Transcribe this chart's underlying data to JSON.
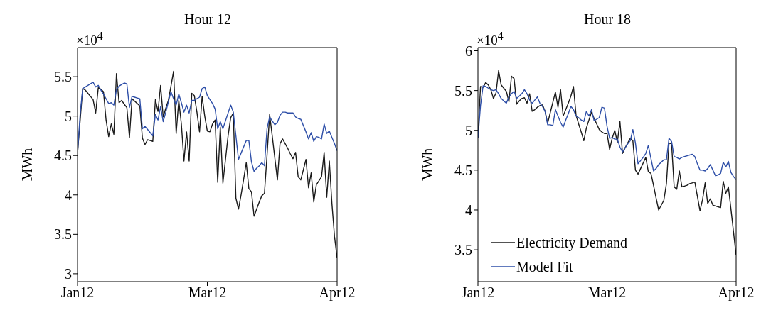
{
  "chart_data": [
    {
      "type": "line",
      "title": "Hour 12",
      "ylabel": "MWh",
      "annotations": [
        "×10$^{4}$"
      ],
      "ylim": [
        2.9,
        5.87
      ],
      "yticks": [
        3,
        3.5,
        4,
        4.5,
        5,
        5.5
      ],
      "grid": false,
      "legend": false,
      "categories": [
        "Jan12",
        null,
        null,
        null,
        null,
        null,
        null,
        null,
        null,
        null,
        null,
        null,
        null,
        null,
        null,
        null,
        null,
        null,
        null,
        null,
        null,
        null,
        null,
        null,
        null,
        null,
        null,
        null,
        null,
        null,
        null,
        null,
        null,
        null,
        null,
        null,
        null,
        null,
        null,
        null,
        null,
        null,
        null,
        null,
        null,
        null,
        null,
        null,
        null,
        null,
        "Mar12",
        null,
        null,
        null,
        null,
        null,
        null,
        null,
        null,
        null,
        null,
        null,
        null,
        null,
        null,
        null,
        null,
        null,
        null,
        null,
        null,
        null,
        null,
        null,
        null,
        null,
        null,
        null,
        null,
        null,
        null,
        null,
        null,
        null,
        null,
        null,
        null,
        null,
        null,
        null,
        null,
        null,
        null,
        null,
        null,
        null,
        null,
        null,
        null,
        null,
        "Apr12"
      ],
      "series": [
        {
          "color": "#1a1a1a",
          "values": [
            4.53,
            4.94,
            5.35,
            5.33,
            5.29,
            5.25,
            5.21,
            5.04,
            5.36,
            5.34,
            5.31,
            4.95,
            4.74,
            4.9,
            4.77,
            5.54,
            5.17,
            5.2,
            5.15,
            5.11,
            4.73,
            5.22,
            5.19,
            5.16,
            5.13,
            4.72,
            4.64,
            4.7,
            4.69,
            4.68,
            5.21,
            5.06,
            5.39,
            4.99,
            5.1,
            5.2,
            5.38,
            5.57,
            4.78,
            5.2,
            4.9,
            4.43,
            4.8,
            4.43,
            5.29,
            5.26,
            5.05,
            4.8,
            5.25,
            5.0,
            4.81,
            4.8,
            4.9,
            4.95,
            4.16,
            4.86,
            4.15,
            4.45,
            4.75,
            4.98,
            5.04,
            3.96,
            3.82,
            4.0,
            4.2,
            4.41,
            4.08,
            4.04,
            3.73,
            3.82,
            3.91,
            3.99,
            4.02,
            4.5,
            5.02,
            4.75,
            4.47,
            4.19,
            4.65,
            4.71,
            4.65,
            4.59,
            4.52,
            4.46,
            4.54,
            4.23,
            4.19,
            4.32,
            4.45,
            4.09,
            4.28,
            3.91,
            4.13,
            4.18,
            4.23,
            4.54,
            3.97,
            4.43,
            3.89,
            3.47,
            3.2
          ]
        },
        {
          "color": "#2e4fa8",
          "values": [
            4.53,
            5.02,
            5.35,
            5.37,
            5.39,
            5.41,
            5.43,
            5.37,
            5.39,
            5.33,
            5.28,
            5.22,
            5.16,
            5.17,
            5.14,
            5.34,
            5.38,
            5.4,
            5.42,
            5.41,
            5.11,
            5.25,
            5.24,
            5.23,
            5.22,
            4.84,
            4.87,
            4.83,
            4.79,
            4.75,
            5.02,
            4.95,
            5.12,
            4.93,
            5.05,
            5.18,
            5.31,
            5.22,
            5.14,
            5.28,
            5.17,
            5.05,
            5.14,
            5.04,
            5.2,
            5.2,
            5.22,
            5.24,
            5.35,
            5.37,
            5.26,
            5.21,
            5.16,
            5.09,
            4.84,
            4.93,
            4.84,
            4.94,
            5.04,
            5.14,
            5.05,
            4.75,
            4.45,
            4.53,
            4.61,
            4.69,
            4.69,
            4.42,
            4.3,
            4.34,
            4.37,
            4.41,
            4.37,
            4.84,
            4.99,
            4.94,
            4.89,
            4.92,
            5.01,
            5.05,
            5.05,
            5.04,
            5.04,
            5.04,
            4.99,
            4.97,
            4.96,
            4.88,
            4.8,
            4.71,
            4.79,
            4.68,
            4.74,
            4.73,
            4.71,
            4.9,
            4.78,
            4.81,
            4.73,
            4.65,
            4.56
          ]
        }
      ]
    },
    {
      "type": "line",
      "title": "Hour 18",
      "ylabel": "MWh",
      "annotations": [
        "×10$^{4}$"
      ],
      "ylim": [
        3.1,
        6.04
      ],
      "yticks": [
        3.5,
        4,
        4.5,
        5,
        5.5,
        6
      ],
      "grid": false,
      "legend": "bottom left",
      "categories": [
        "Jan12",
        null,
        null,
        null,
        null,
        null,
        null,
        null,
        null,
        null,
        null,
        null,
        null,
        null,
        null,
        null,
        null,
        null,
        null,
        null,
        null,
        null,
        null,
        null,
        null,
        null,
        null,
        null,
        null,
        null,
        null,
        null,
        null,
        null,
        null,
        null,
        null,
        null,
        null,
        null,
        null,
        null,
        null,
        null,
        null,
        null,
        null,
        null,
        null,
        null,
        "Mar12",
        null,
        null,
        null,
        null,
        null,
        null,
        null,
        null,
        null,
        null,
        null,
        null,
        null,
        null,
        null,
        null,
        null,
        null,
        null,
        null,
        null,
        null,
        null,
        null,
        null,
        null,
        null,
        null,
        null,
        null,
        null,
        null,
        null,
        null,
        null,
        null,
        null,
        null,
        null,
        null,
        null,
        null,
        null,
        null,
        null,
        null,
        null,
        null,
        null,
        "Apr12"
      ],
      "series": [
        {
          "name": "Electricity Demand",
          "color": "#1a1a1a",
          "values": [
            4.9,
            5.55,
            5.54,
            5.6,
            5.57,
            5.51,
            5.4,
            5.47,
            5.75,
            5.57,
            5.53,
            5.49,
            5.36,
            5.68,
            5.65,
            5.33,
            5.37,
            5.4,
            5.41,
            5.34,
            5.46,
            5.24,
            5.26,
            5.29,
            5.31,
            5.32,
            5.24,
            5.09,
            5.22,
            5.35,
            5.48,
            5.29,
            5.51,
            5.18,
            5.26,
            5.34,
            5.43,
            5.55,
            5.19,
            5.08,
            4.98,
            4.87,
            5.03,
            5.13,
            5.23,
            5.15,
            5.08,
            5.01,
            4.98,
            4.96,
            4.96,
            4.76,
            4.9,
            5.0,
            4.85,
            5.11,
            4.71,
            4.78,
            4.84,
            4.9,
            4.87,
            4.5,
            4.45,
            4.52,
            4.59,
            4.66,
            4.48,
            4.46,
            4.31,
            4.15,
            4.0,
            4.06,
            4.12,
            4.33,
            4.84,
            4.83,
            4.29,
            4.26,
            4.49,
            4.29,
            4.3,
            4.31,
            4.33,
            4.34,
            4.35,
            4.17,
            3.99,
            4.13,
            4.34,
            4.08,
            4.14,
            4.06,
            4.05,
            4.04,
            4.03,
            4.36,
            4.21,
            4.29,
            4.01,
            3.72,
            3.43
          ]
        },
        {
          "name": "Model Fit",
          "color": "#2e4fa8",
          "values": [
            4.9,
            5.31,
            5.56,
            5.55,
            5.53,
            5.51,
            5.5,
            5.51,
            5.46,
            5.4,
            5.37,
            5.34,
            5.42,
            5.46,
            5.49,
            5.4,
            5.43,
            5.46,
            5.51,
            5.46,
            5.38,
            5.34,
            5.38,
            5.42,
            5.34,
            5.3,
            5.24,
            5.07,
            5.07,
            5.06,
            5.26,
            5.18,
            5.1,
            5.04,
            5.13,
            5.21,
            5.3,
            5.26,
            5.18,
            5.16,
            5.13,
            5.11,
            5.24,
            5.18,
            5.26,
            5.12,
            5.14,
            5.16,
            5.29,
            5.28,
            5.05,
            4.9,
            4.91,
            4.89,
            4.89,
            4.79,
            4.73,
            4.78,
            4.83,
            4.87,
            5.01,
            4.84,
            4.58,
            4.62,
            4.66,
            4.71,
            4.81,
            4.65,
            4.49,
            4.52,
            4.57,
            4.6,
            4.63,
            4.63,
            4.9,
            4.86,
            4.67,
            4.66,
            4.64,
            4.66,
            4.67,
            4.68,
            4.69,
            4.7,
            4.67,
            4.58,
            4.5,
            4.5,
            4.49,
            4.52,
            4.57,
            4.5,
            4.43,
            4.44,
            4.46,
            4.6,
            4.54,
            4.61,
            4.47,
            4.42,
            4.38
          ]
        }
      ]
    }
  ]
}
